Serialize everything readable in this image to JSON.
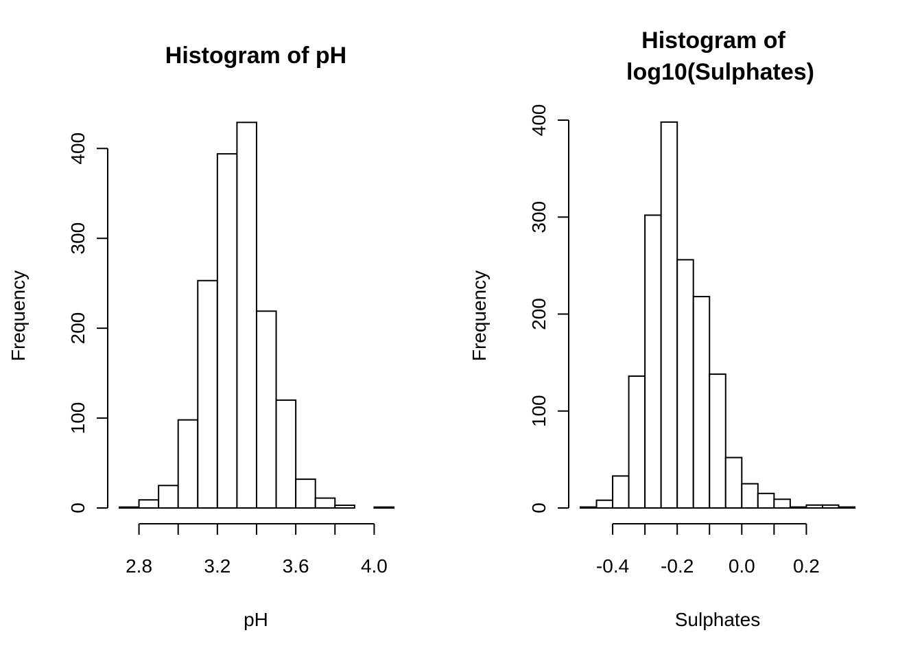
{
  "chart_data": [
    {
      "type": "bar",
      "title_lines": [
        "Histogram of pH"
      ],
      "xlabel": "pH",
      "ylabel": "Frequency",
      "bin_edges": [
        2.7,
        2.8,
        2.9,
        3.0,
        3.1,
        3.2,
        3.3,
        3.4,
        3.5,
        3.6,
        3.7,
        3.8,
        3.9,
        4.0,
        4.1
      ],
      "values": [
        1,
        9,
        25,
        98,
        253,
        394,
        429,
        219,
        120,
        32,
        11,
        3,
        0,
        1
      ],
      "xlim": [
        2.7,
        4.1
      ],
      "ylim": [
        0,
        430
      ],
      "x_ticks": [
        2.8,
        3.0,
        3.2,
        3.4,
        3.6,
        3.8,
        4.0
      ],
      "x_tick_labels": [
        "2.8",
        "",
        "3.2",
        "",
        "3.6",
        "",
        "4.0"
      ],
      "y_ticks": [
        0,
        100,
        200,
        300,
        400
      ],
      "y_tick_labels": [
        "0",
        "100",
        "200",
        "300",
        "400"
      ],
      "grid": false
    },
    {
      "type": "bar",
      "title_lines": [
        "Histogram of",
        "log10(Sulphates)"
      ],
      "xlabel": "Sulphates",
      "ylabel": "Frequency",
      "bin_edges": [
        -0.5,
        -0.45,
        -0.4,
        -0.35,
        -0.3,
        -0.25,
        -0.2,
        -0.15,
        -0.1,
        -0.05,
        0.0,
        0.05,
        0.1,
        0.15,
        0.2,
        0.25,
        0.3,
        0.35
      ],
      "values": [
        1,
        8,
        33,
        136,
        302,
        398,
        256,
        218,
        138,
        52,
        25,
        15,
        9,
        1,
        3,
        3,
        1
      ],
      "xlim": [
        -0.5,
        0.35
      ],
      "ylim": [
        0,
        400
      ],
      "x_ticks": [
        -0.4,
        -0.3,
        -0.2,
        -0.1,
        0.0,
        0.1,
        0.2
      ],
      "x_tick_labels": [
        "-0.4",
        "",
        "-0.2",
        "",
        "0.0",
        "",
        "0.2"
      ],
      "y_ticks": [
        0,
        100,
        200,
        300,
        400
      ],
      "y_tick_labels": [
        "0",
        "100",
        "200",
        "300",
        "400"
      ],
      "grid": false
    }
  ]
}
